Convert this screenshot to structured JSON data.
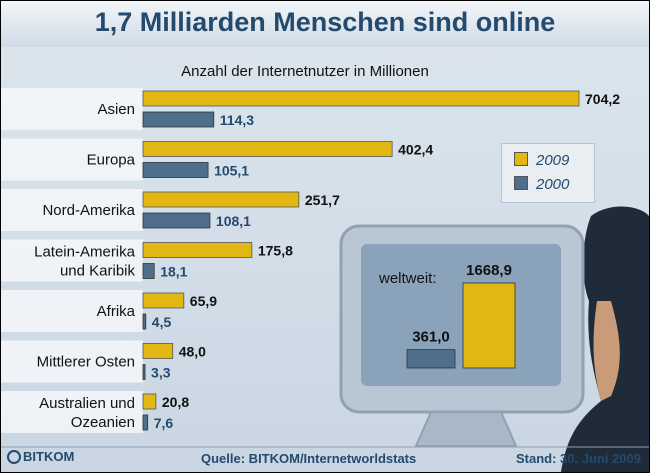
{
  "header": {
    "title": "1,7 Milliarden Menschen sind online",
    "subtitle": "Anzahl der Internetnutzer in Millionen"
  },
  "legend": {
    "items": [
      "2009",
      "2000"
    ]
  },
  "colors": {
    "series_2009": "#e2b714",
    "series_2000": "#4e6e8c",
    "accent": "#244a6e"
  },
  "chart_data": {
    "type": "bar",
    "orientation": "horizontal",
    "title": "1,7 Milliarden Menschen sind online",
    "subtitle": "Anzahl der Internetnutzer in Millionen",
    "categories": [
      "Asien",
      "Europa",
      "Nord-Amerika",
      "Latein-Amerika und Karibik",
      "Afrika",
      "Mittlerer Osten",
      "Australien und Ozeanien"
    ],
    "category_lines": [
      [
        "Asien"
      ],
      [
        "Europa"
      ],
      [
        "Nord-Amerika"
      ],
      [
        "Latein-Amerika",
        "und Karibik"
      ],
      [
        "Afrika"
      ],
      [
        "Mittlerer Osten"
      ],
      [
        "Australien und",
        "Ozeanien"
      ]
    ],
    "series": [
      {
        "name": "2009",
        "values": [
          704.2,
          402.4,
          251.7,
          175.8,
          65.9,
          48.0,
          20.8
        ],
        "labels": [
          "704,2",
          "402,4",
          "251,7",
          "175,8",
          "65,9",
          "48,0",
          "20,8"
        ]
      },
      {
        "name": "2000",
        "values": [
          114.3,
          105.1,
          108.1,
          18.1,
          4.5,
          3.3,
          7.6
        ],
        "labels": [
          "114,3",
          "105,1",
          "108,1",
          "18,1",
          "4,5",
          "3,3",
          "7,6"
        ]
      }
    ],
    "xlim": [
      0,
      704.2
    ],
    "grid": false,
    "legend_position": "right",
    "inset": {
      "type": "bar",
      "label": "weltweit:",
      "series": [
        {
          "name": "2000",
          "value": 361.0,
          "label": "361,0"
        },
        {
          "name": "2009",
          "value": 1668.9,
          "label": "1668,9"
        }
      ]
    }
  },
  "footer": {
    "source": "Quelle: BITKOM/Internetworldstats",
    "date": "Stand: 30. Juni 2009",
    "logo_text": "BITKOM"
  }
}
